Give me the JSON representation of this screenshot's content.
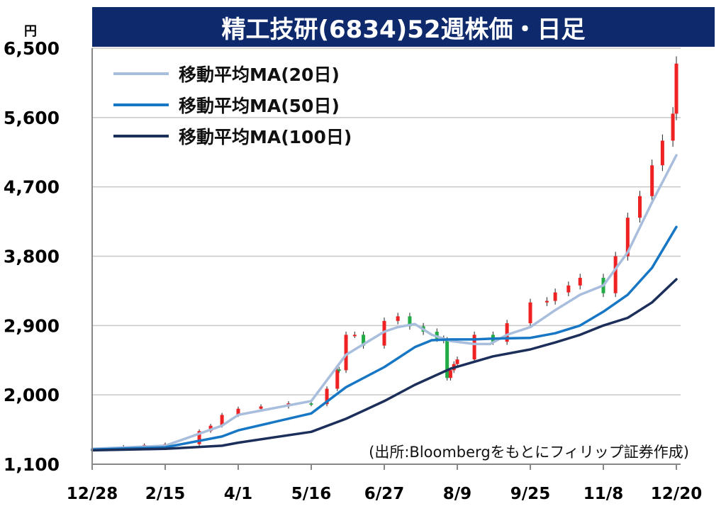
{
  "title": "精工技研(6834)52週株価・日足",
  "unit_label": "円",
  "source_note": "(出所:Bloombergをもとにフィリップ証券作成)",
  "chart_data": {
    "type": "line",
    "title": "精工技研(6834)52週株価・日足",
    "ylabel": "円",
    "ylim": [
      1100,
      6500
    ],
    "yticks": [
      "6,500",
      "5,600",
      "4,700",
      "3,800",
      "2,900",
      "2,000",
      "1,100"
    ],
    "ytick_values": [
      6500,
      5600,
      4700,
      3800,
      2900,
      2000,
      1100
    ],
    "x_ticks": [
      "12/28",
      "2/15",
      "4/1",
      "5/16",
      "6/27",
      "8/9",
      "9/25",
      "11/8",
      "12/20"
    ],
    "grid": true,
    "legend_position": "top-left",
    "price_colors": {
      "up": "#ee2222",
      "down": "#22aa44",
      "wick": "#222222"
    },
    "price_series": {
      "name": "株価(日足)",
      "x": [
        "12/28",
        "1/18",
        "2/1",
        "2/15",
        "3/8",
        "3/15",
        "3/22",
        "4/1",
        "4/15",
        "5/2",
        "5/16",
        "5/25",
        "5/31",
        "6/1",
        "6/5",
        "6/10",
        "6/15",
        "6/27",
        "7/5",
        "7/12",
        "7/20",
        "7/28",
        "8/1",
        "8/3",
        "8/5",
        "8/7",
        "8/9",
        "8/20",
        "9/1",
        "9/10",
        "9/25",
        "10/5",
        "10/10",
        "10/18",
        "10/25",
        "11/8",
        "11/15",
        "11/22",
        "11/29",
        "12/6",
        "12/12",
        "12/18",
        "12/20"
      ],
      "close": [
        1300,
        1330,
        1350,
        1360,
        1530,
        1600,
        1740,
        1820,
        1850,
        1890,
        1880,
        2080,
        2330,
        2320,
        2780,
        2780,
        2640,
        2960,
        3020,
        2890,
        2820,
        2730,
        2710,
        2220,
        2320,
        2400,
        2460,
        2780,
        2690,
        2930,
        3200,
        3220,
        3330,
        3420,
        3520,
        3320,
        3800,
        4300,
        4580,
        4980,
        5300,
        5650,
        6300
      ]
    },
    "series": [
      {
        "name": "移動平均MA(20日)",
        "color": "#a8bedc",
        "x": [
          "12/28",
          "2/15",
          "3/22",
          "4/1",
          "5/16",
          "6/5",
          "6/27",
          "7/5",
          "7/15",
          "7/25",
          "8/5",
          "8/20",
          "8/30",
          "9/10",
          "9/25",
          "10/10",
          "10/25",
          "11/8",
          "11/22",
          "12/6",
          "12/20"
        ],
        "values": [
          1300,
          1340,
          1600,
          1740,
          1920,
          2520,
          2820,
          2880,
          2920,
          2780,
          2700,
          2660,
          2660,
          2780,
          2880,
          3100,
          3300,
          3420,
          3850,
          4500,
          5110
        ]
      },
      {
        "name": "移動平均MA(50日)",
        "color": "#1777c4",
        "x": [
          "12/28",
          "2/15",
          "3/22",
          "4/1",
          "5/16",
          "6/5",
          "6/27",
          "7/15",
          "7/25",
          "8/5",
          "8/20",
          "9/1",
          "9/25",
          "10/10",
          "10/25",
          "11/8",
          "11/22",
          "12/6",
          "12/20"
        ],
        "values": [
          1290,
          1320,
          1460,
          1540,
          1760,
          2100,
          2360,
          2620,
          2710,
          2720,
          2720,
          2730,
          2740,
          2800,
          2900,
          3080,
          3300,
          3650,
          4180
        ]
      },
      {
        "name": "移動平均MA(100日)",
        "color": "#1c2f5a",
        "x": [
          "12/28",
          "2/15",
          "3/22",
          "4/1",
          "5/16",
          "6/5",
          "6/27",
          "7/15",
          "8/5",
          "8/20",
          "9/1",
          "9/25",
          "10/10",
          "10/25",
          "11/8",
          "11/22",
          "12/6",
          "12/20"
        ],
        "values": [
          1280,
          1300,
          1340,
          1380,
          1520,
          1690,
          1920,
          2130,
          2340,
          2430,
          2500,
          2590,
          2680,
          2780,
          2900,
          3000,
          3200,
          3500
        ]
      }
    ]
  }
}
